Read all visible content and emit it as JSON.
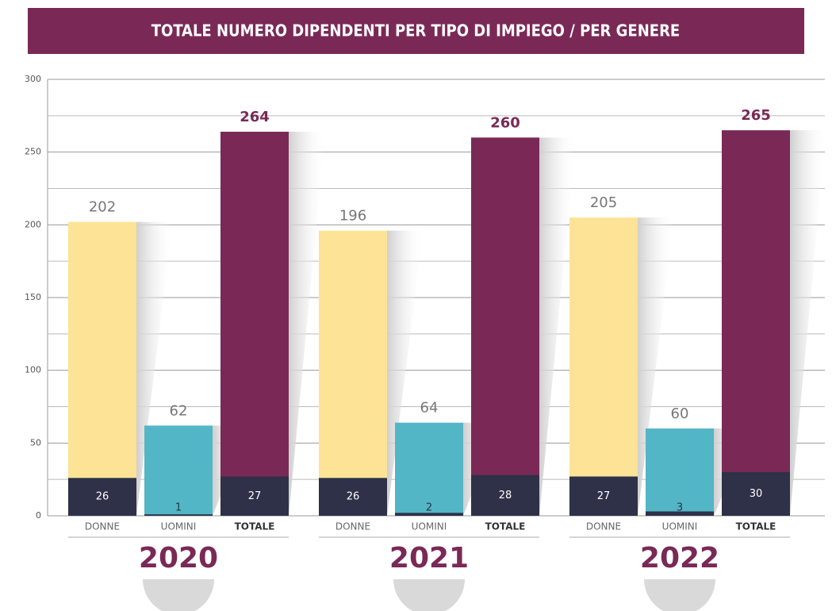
{
  "chart_data": {
    "type": "bar",
    "title": "TOTALE NUMERO DIPENDENTI PER TIPO DI IMPIEGO / PER GENERE",
    "groups": [
      "2020",
      "2021",
      "2022"
    ],
    "categories": [
      "DONNE",
      "UOMINI",
      "TOTALE"
    ],
    "colors": [
      "#fde396",
      "#52b6c6",
      "#7a2956"
    ],
    "values": [
      [
        202,
        62,
        264
      ],
      [
        196,
        64,
        260
      ],
      [
        205,
        60,
        265
      ]
    ],
    "inner_color": "#2e3148",
    "inner_values": [
      [
        26,
        1,
        27
      ],
      [
        26,
        2,
        28
      ],
      [
        27,
        3,
        30
      ]
    ],
    "ylim": [
      0,
      300
    ],
    "yticks": [
      0,
      50,
      100,
      150,
      200,
      250,
      300
    ],
    "minor_yticks": [
      25,
      75,
      125,
      175,
      225,
      275
    ],
    "grid": true
  }
}
